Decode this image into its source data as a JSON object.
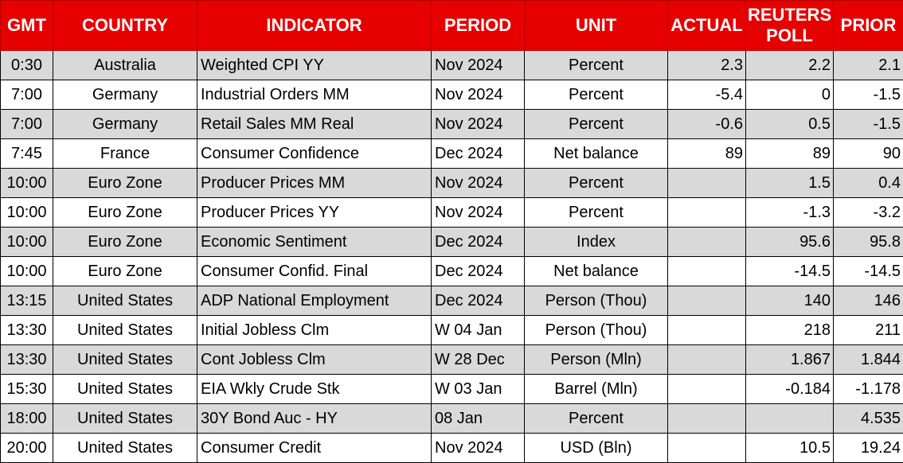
{
  "headers": {
    "gmt": "GMT",
    "country": "COUNTRY",
    "indicator": "INDICATOR",
    "period": "PERIOD",
    "unit": "UNIT",
    "actual": "ACTUAL",
    "reuters_line1": "REUTERS",
    "reuters_line2": "POLL",
    "prior": "PRIOR"
  },
  "colors": {
    "header_bg": "#e60000",
    "shade_row": "#d9d9d9"
  },
  "rows": [
    {
      "gmt": "0:30",
      "country": "Australia",
      "indicator": "Weighted CPI YY",
      "period": "Nov 2024",
      "unit": "Percent",
      "actual": "2.3",
      "poll": "2.2",
      "prior": "2.1"
    },
    {
      "gmt": "7:00",
      "country": "Germany",
      "indicator": "Industrial Orders MM",
      "period": "Nov 2024",
      "unit": "Percent",
      "actual": "-5.4",
      "poll": "0",
      "prior": "-1.5"
    },
    {
      "gmt": "7:00",
      "country": "Germany",
      "indicator": "Retail Sales MM Real",
      "period": "Nov 2024",
      "unit": "Percent",
      "actual": "-0.6",
      "poll": "0.5",
      "prior": "-1.5"
    },
    {
      "gmt": "7:45",
      "country": "France",
      "indicator": "Consumer Confidence",
      "period": "Dec 2024",
      "unit": "Net balance",
      "actual": "89",
      "poll": "89",
      "prior": "90"
    },
    {
      "gmt": "10:00",
      "country": "Euro Zone",
      "indicator": "Producer Prices MM",
      "period": "Nov 2024",
      "unit": "Percent",
      "actual": "",
      "poll": "1.5",
      "prior": "0.4"
    },
    {
      "gmt": "10:00",
      "country": "Euro Zone",
      "indicator": "Producer Prices YY",
      "period": "Nov 2024",
      "unit": "Percent",
      "actual": "",
      "poll": "-1.3",
      "prior": "-3.2"
    },
    {
      "gmt": "10:00",
      "country": "Euro Zone",
      "indicator": "Economic Sentiment",
      "period": "Dec 2024",
      "unit": "Index",
      "actual": "",
      "poll": "95.6",
      "prior": "95.8"
    },
    {
      "gmt": "10:00",
      "country": "Euro Zone",
      "indicator": "Consumer Confid. Final",
      "period": "Dec 2024",
      "unit": "Net balance",
      "actual": "",
      "poll": "-14.5",
      "prior": "-14.5"
    },
    {
      "gmt": "13:15",
      "country": "United States",
      "indicator": "ADP National Employment",
      "period": "Dec 2024",
      "unit": "Person (Thou)",
      "actual": "",
      "poll": "140",
      "prior": "146"
    },
    {
      "gmt": "13:30",
      "country": "United States",
      "indicator": "Initial Jobless Clm",
      "period": "W 04 Jan",
      "unit": "Person (Thou)",
      "actual": "",
      "poll": "218",
      "prior": "211"
    },
    {
      "gmt": "13:30",
      "country": "United States",
      "indicator": "Cont Jobless Clm",
      "period": "W 28 Dec",
      "unit": "Person (Mln)",
      "actual": "",
      "poll": "1.867",
      "prior": "1.844"
    },
    {
      "gmt": "15:30",
      "country": "United States",
      "indicator": "EIA Wkly Crude Stk",
      "period": "W 03 Jan",
      "unit": "Barrel (Mln)",
      "actual": "",
      "poll": "-0.184",
      "prior": "-1.178"
    },
    {
      "gmt": "18:00",
      "country": "United States",
      "indicator": "30Y Bond Auc - HY",
      "period": "08 Jan",
      "unit": "Percent",
      "actual": "",
      "poll": "",
      "prior": "4.535"
    },
    {
      "gmt": "20:00",
      "country": "United States",
      "indicator": "Consumer Credit",
      "period": "Nov 2024",
      "unit": "USD (Bln)",
      "actual": "",
      "poll": "10.5",
      "prior": "19.24"
    }
  ]
}
